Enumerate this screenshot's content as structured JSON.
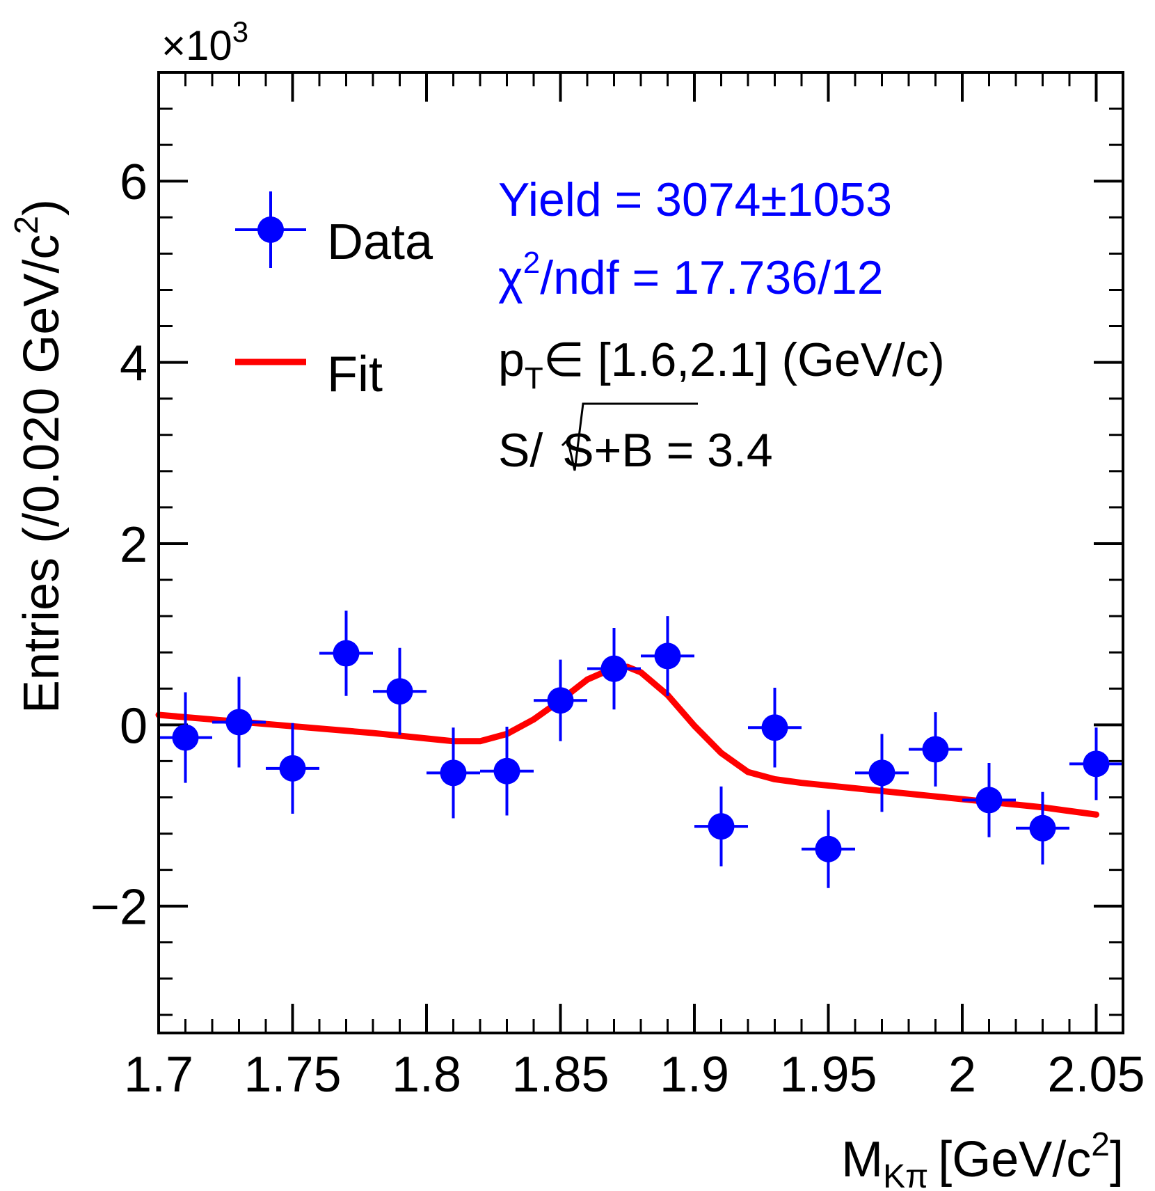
{
  "chart_data": {
    "type": "scatter",
    "title": "",
    "xlabel": "M",
    "xlabel_sub": "Kπ",
    "xlabel_unit": "[GeV/c",
    "xlabel_unit_sup": "2",
    "xlabel_close": "]",
    "ylabel": "Entries (/0.020 GeV/c",
    "ylabel_sup": "2",
    "ylabel_close": ")",
    "y_multiplier_base": "×10",
    "y_multiplier_exp": "3",
    "xlim": [
      1.7,
      2.06
    ],
    "ylim": [
      -3.4,
      7.2
    ],
    "x_ticks": [
      1.7,
      1.75,
      1.8,
      1.85,
      1.9,
      1.95,
      2.0,
      2.05
    ],
    "x_tick_labels": [
      "1.7",
      "1.75",
      "1.8",
      "1.85",
      "1.9",
      "1.95",
      "2",
      "2.05"
    ],
    "y_ticks": [
      -2,
      0,
      2,
      4,
      6
    ],
    "y_tick_labels": [
      "−2",
      "0",
      "2",
      "4",
      "6"
    ],
    "bin_half_width": 0.01,
    "series": [
      {
        "name": "Data",
        "color": "#0000ff",
        "x": [
          1.71,
          1.73,
          1.75,
          1.77,
          1.79,
          1.81,
          1.83,
          1.85,
          1.87,
          1.89,
          1.91,
          1.93,
          1.95,
          1.97,
          1.99,
          2.01,
          2.03,
          2.05
        ],
        "y": [
          -0.14,
          0.03,
          -0.48,
          0.79,
          0.37,
          -0.53,
          -0.51,
          0.27,
          0.62,
          0.76,
          -1.12,
          -0.03,
          -1.37,
          -0.53,
          -0.27,
          -0.83,
          -1.14,
          -0.43
        ],
        "yerr": [
          0.5,
          0.5,
          0.5,
          0.47,
          0.48,
          0.5,
          0.49,
          0.45,
          0.45,
          0.44,
          0.44,
          0.44,
          0.43,
          0.43,
          0.41,
          0.41,
          0.4,
          0.4
        ]
      },
      {
        "name": "Fit",
        "color": "#ff0000",
        "type": "line",
        "x": [
          1.7,
          1.72,
          1.74,
          1.76,
          1.78,
          1.8,
          1.81,
          1.82,
          1.83,
          1.84,
          1.85,
          1.86,
          1.87,
          1.875,
          1.88,
          1.89,
          1.9,
          1.91,
          1.92,
          1.93,
          1.94,
          1.95,
          1.97,
          1.99,
          2.01,
          2.03,
          2.05
        ],
        "y": [
          0.11,
          0.06,
          0.01,
          -0.04,
          -0.09,
          -0.15,
          -0.18,
          -0.18,
          -0.1,
          0.06,
          0.27,
          0.5,
          0.63,
          0.64,
          0.58,
          0.33,
          -0.01,
          -0.31,
          -0.52,
          -0.6,
          -0.64,
          -0.67,
          -0.73,
          -0.79,
          -0.85,
          -0.91,
          -0.99
        ]
      }
    ],
    "legend": {
      "position": "top-left",
      "entries": [
        {
          "label": "Data",
          "marker": "point-with-errors",
          "color": "#0000ff"
        },
        {
          "label": "Fit",
          "marker": "line",
          "color": "#ff0000"
        }
      ]
    },
    "annotations": {
      "yield": "Yield = 3074±1053",
      "chi2_symbol": "χ",
      "chi2_sup": "2",
      "chi2_rest": "/ndf = 17.736/12",
      "pt_p": "p",
      "pt_sub": "T",
      "pt_rest": "∈ [1.6,2.1] (GeV/c)",
      "sig_s": "S/",
      "sig_root": "S+B",
      "sig_rest": " = 3.4",
      "yield_color": "#0000ff",
      "chi2_color": "#0000ff",
      "pt_color": "#000000",
      "sig_color": "#000000"
    }
  }
}
